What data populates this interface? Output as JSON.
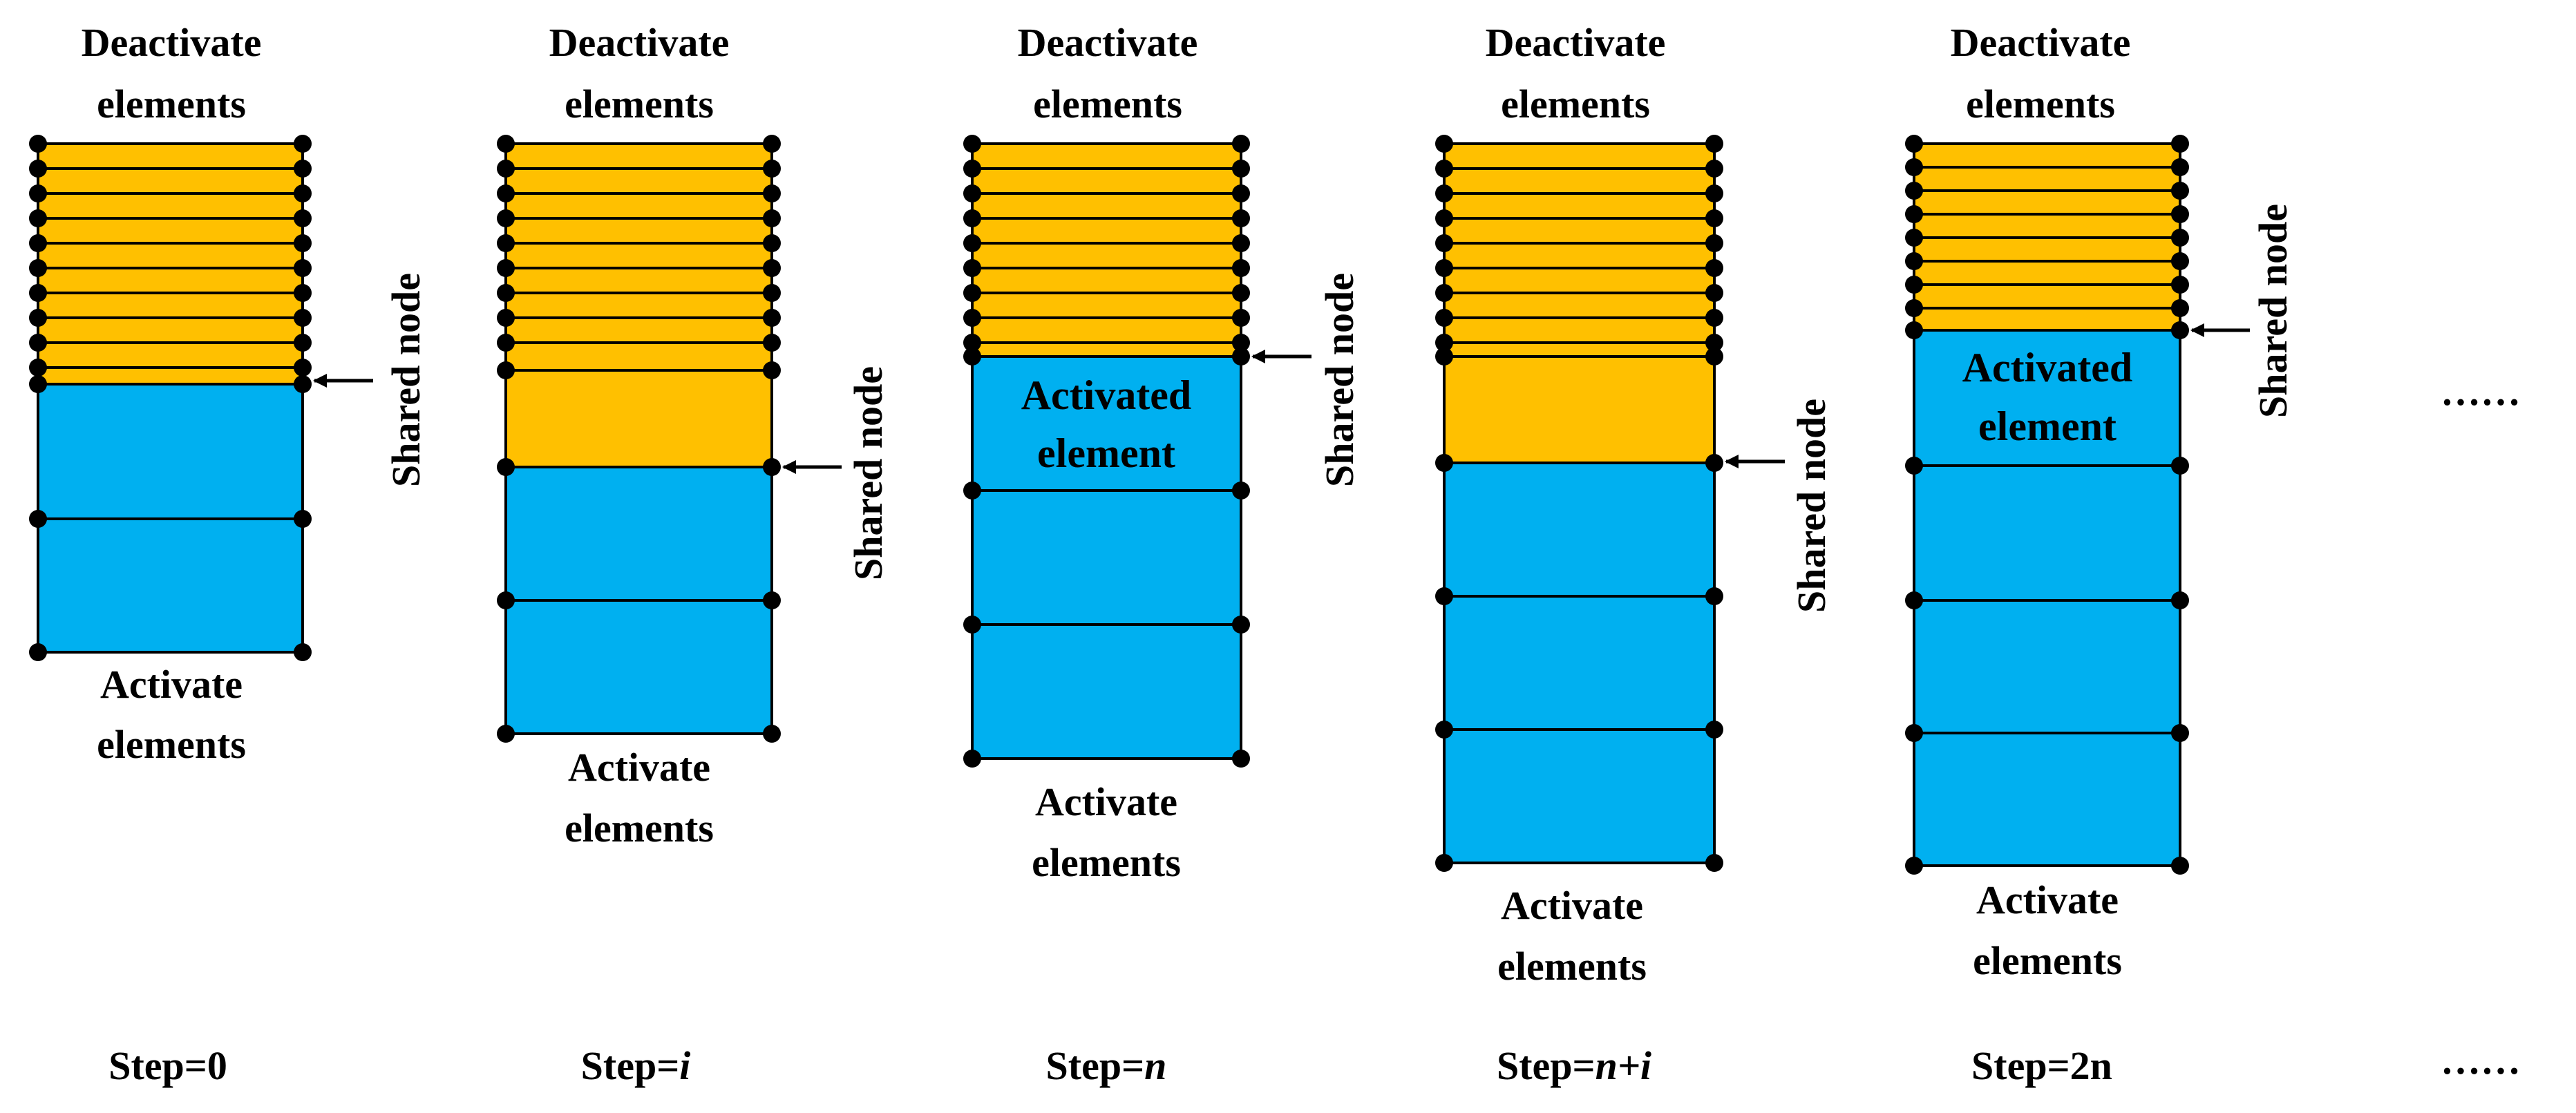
{
  "colors": {
    "deactivated": "#FFC000",
    "activated": "#00B0F0",
    "stroke": "#000000",
    "node": "#000000"
  },
  "labels": {
    "deactivate_line1": "Deactivate",
    "deactivate_line2": "elements",
    "activate_line1": "Activate",
    "activate_line2": "elements",
    "shared_node": "Shared node",
    "activated_line1": "Activated",
    "activated_line2": "element",
    "continuation": "……"
  },
  "steps": [
    {
      "prefix": "Step=",
      "value": "0",
      "value_italic": false
    },
    {
      "prefix": "Step=",
      "value": "i",
      "value_italic": true
    },
    {
      "prefix": "Step=",
      "value": "n",
      "value_italic": true
    },
    {
      "prefix": "Step=",
      "value": "n+i",
      "value_italic": true
    },
    {
      "prefix": "Step=",
      "value": "2n",
      "value_italic": false
    }
  ]
}
